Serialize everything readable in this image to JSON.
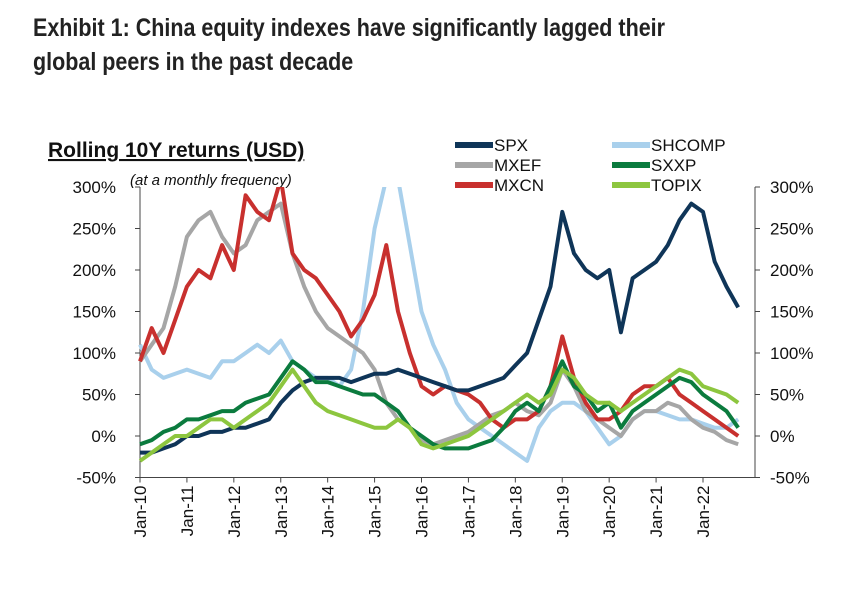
{
  "title_line1": "Exhibit 1: China equity indexes have significantly lagged their",
  "title_line2": "global peers in the past decade",
  "chart_data": {
    "type": "line",
    "title": "Rolling 10Y returns (USD)",
    "subtitle": "(at a monthly frequency)",
    "xlabel": "",
    "ylabel": "",
    "x_start_year": 2010,
    "x_step_years": 0.25,
    "x_ticks": [
      "Jan-10",
      "Jan-11",
      "Jan-12",
      "Jan-13",
      "Jan-14",
      "Jan-15",
      "Jan-16",
      "Jan-17",
      "Jan-18",
      "Jan-19",
      "Jan-20",
      "Jan-21",
      "Jan-22"
    ],
    "y_ticks": [
      "300%",
      "250%",
      "200%",
      "150%",
      "100%",
      "50%",
      "0%",
      "-50%"
    ],
    "y_tick_values": [
      300,
      250,
      200,
      150,
      100,
      50,
      0,
      -50
    ],
    "ylim": [
      -50,
      300
    ],
    "grid": false,
    "legend": "top-right",
    "series": [
      {
        "name": "SPX",
        "color": "#0f3558",
        "values": [
          -20,
          -20,
          -15,
          -10,
          0,
          0,
          5,
          5,
          10,
          10,
          15,
          20,
          40,
          55,
          65,
          70,
          70,
          70,
          65,
          70,
          75,
          75,
          80,
          75,
          70,
          65,
          60,
          55,
          55,
          60,
          65,
          70,
          85,
          100,
          140,
          180,
          270,
          220,
          200,
          190,
          200,
          125,
          190,
          200,
          210,
          230,
          260,
          280,
          270,
          210,
          180,
          155
        ]
      },
      {
        "name": "SHCOMP",
        "color": "#a9d0ec",
        "values": [
          110,
          80,
          70,
          75,
          80,
          75,
          70,
          90,
          90,
          100,
          110,
          100,
          115,
          90,
          80,
          70,
          70,
          60,
          80,
          150,
          250,
          310,
          310,
          230,
          150,
          110,
          80,
          40,
          20,
          10,
          0,
          -10,
          -20,
          -30,
          10,
          30,
          40,
          40,
          30,
          10,
          -10,
          0,
          20,
          30,
          30,
          25,
          20,
          20,
          15,
          10,
          10,
          20
        ]
      },
      {
        "name": "MXEF",
        "color": "#a6a6a6",
        "values": [
          90,
          110,
          130,
          180,
          240,
          260,
          270,
          240,
          220,
          230,
          260,
          270,
          280,
          220,
          180,
          150,
          130,
          120,
          110,
          100,
          80,
          40,
          20,
          10,
          -5,
          -10,
          -5,
          0,
          5,
          15,
          25,
          30,
          40,
          30,
          25,
          40,
          80,
          60,
          30,
          20,
          10,
          0,
          20,
          30,
          30,
          40,
          35,
          20,
          10,
          5,
          -5,
          -10
        ]
      },
      {
        "name": "SXXP",
        "color": "#0b7b3e",
        "values": [
          -10,
          -5,
          5,
          10,
          20,
          20,
          25,
          30,
          30,
          40,
          45,
          50,
          70,
          90,
          80,
          65,
          65,
          60,
          55,
          50,
          50,
          40,
          30,
          10,
          0,
          -10,
          -15,
          -15,
          -15,
          -10,
          -5,
          10,
          30,
          40,
          30,
          60,
          90,
          60,
          50,
          30,
          40,
          10,
          30,
          40,
          50,
          60,
          70,
          65,
          50,
          40,
          30,
          10
        ]
      },
      {
        "name": "MXCN",
        "color": "#c8302e",
        "values": [
          90,
          130,
          100,
          140,
          180,
          200,
          190,
          230,
          200,
          290,
          270,
          260,
          310,
          220,
          200,
          190,
          170,
          150,
          120,
          140,
          170,
          230,
          150,
          100,
          60,
          50,
          60,
          55,
          50,
          40,
          20,
          10,
          20,
          20,
          30,
          60,
          120,
          70,
          40,
          20,
          20,
          30,
          50,
          60,
          60,
          70,
          50,
          40,
          30,
          20,
          10,
          0
        ]
      },
      {
        "name": "TOPIX",
        "color": "#8dc63f",
        "values": [
          -30,
          -20,
          -10,
          0,
          0,
          10,
          20,
          20,
          10,
          20,
          30,
          40,
          60,
          80,
          60,
          40,
          30,
          25,
          20,
          15,
          10,
          10,
          20,
          10,
          -10,
          -15,
          -10,
          -5,
          0,
          10,
          20,
          30,
          40,
          50,
          40,
          50,
          80,
          70,
          50,
          40,
          40,
          30,
          40,
          50,
          60,
          70,
          80,
          75,
          60,
          55,
          50,
          40
        ]
      }
    ],
    "legend_order": [
      "SPX",
      "SHCOMP",
      "MXEF",
      "SXXP",
      "MXCN",
      "TOPIX"
    ]
  }
}
